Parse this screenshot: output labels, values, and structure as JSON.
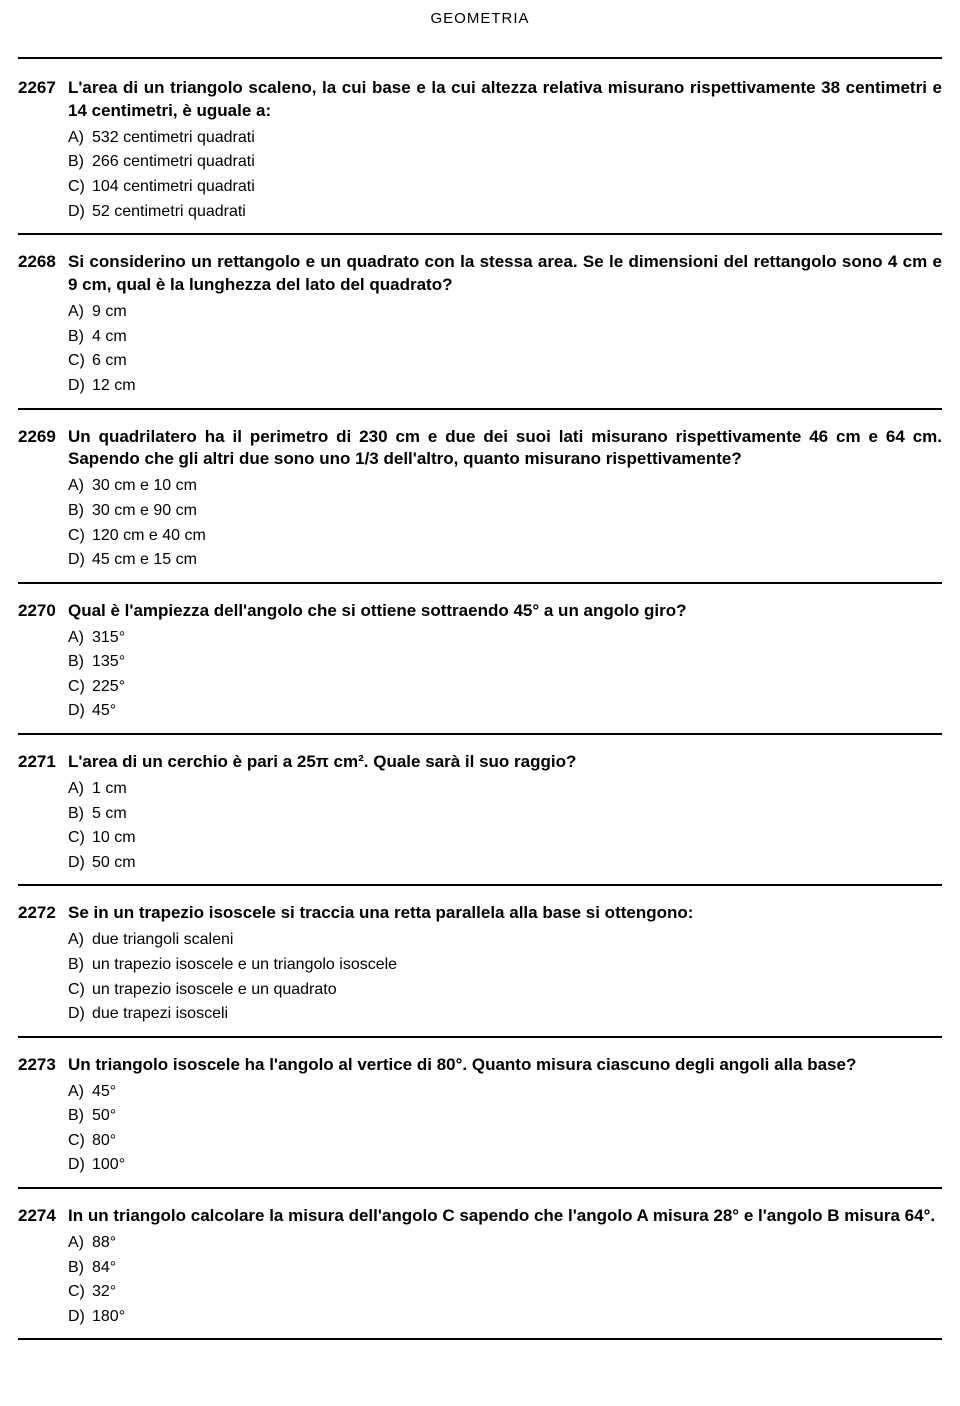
{
  "title": "GEOMETRIA",
  "questions": [
    {
      "number": "2267",
      "text": "L'area di un triangolo scaleno, la cui base e la cui altezza relativa misurano rispettivamente 38 centimetri e 14 centimetri, è uguale a:",
      "options": [
        {
          "letter": "A)",
          "text": "532 centimetri quadrati"
        },
        {
          "letter": "B)",
          "text": "266 centimetri quadrati"
        },
        {
          "letter": "C)",
          "text": "104 centimetri quadrati"
        },
        {
          "letter": "D)",
          "text": "52 centimetri quadrati"
        }
      ]
    },
    {
      "number": "2268",
      "text": "Si considerino un rettangolo e un quadrato con la stessa area. Se le dimensioni del rettangolo sono 4 cm e 9 cm, qual è la lunghezza del lato del quadrato?",
      "options": [
        {
          "letter": "A)",
          "text": "9 cm"
        },
        {
          "letter": "B)",
          "text": "4 cm"
        },
        {
          "letter": "C)",
          "text": "6 cm"
        },
        {
          "letter": "D)",
          "text": "12 cm"
        }
      ]
    },
    {
      "number": "2269",
      "text": "Un quadrilatero ha il perimetro di 230 cm e due dei suoi lati misurano rispettivamente 46 cm e 64 cm. Sapendo che gli altri due sono uno 1/3 dell'altro, quanto misurano rispettivamente?",
      "options": [
        {
          "letter": "A)",
          "text": "30 cm e 10 cm"
        },
        {
          "letter": "B)",
          "text": "30 cm e 90 cm"
        },
        {
          "letter": "C)",
          "text": "120 cm e 40 cm"
        },
        {
          "letter": "D)",
          "text": "45 cm e 15 cm"
        }
      ]
    },
    {
      "number": "2270",
      "text": "Qual è l'ampiezza dell'angolo che si ottiene sottraendo 45° a un angolo giro?",
      "options": [
        {
          "letter": "A)",
          "text": "315°"
        },
        {
          "letter": "B)",
          "text": "135°"
        },
        {
          "letter": "C)",
          "text": "225°"
        },
        {
          "letter": "D)",
          "text": "45°"
        }
      ]
    },
    {
      "number": "2271",
      "text": "L'area di un cerchio è pari a 25π cm². Quale sarà il suo raggio?",
      "options": [
        {
          "letter": "A)",
          "text": "1 cm"
        },
        {
          "letter": "B)",
          "text": "5 cm"
        },
        {
          "letter": "C)",
          "text": "10 cm"
        },
        {
          "letter": "D)",
          "text": "50 cm"
        }
      ]
    },
    {
      "number": "2272",
      "text": "Se in un trapezio isoscele si traccia una retta parallela alla base si ottengono:",
      "options": [
        {
          "letter": "A)",
          "text": "due triangoli scaleni"
        },
        {
          "letter": "B)",
          "text": "un trapezio isoscele e un triangolo isoscele"
        },
        {
          "letter": "C)",
          "text": "un trapezio isoscele e un quadrato"
        },
        {
          "letter": "D)",
          "text": "due trapezi isosceli"
        }
      ]
    },
    {
      "number": "2273",
      "text": "Un triangolo isoscele ha l'angolo al vertice di 80°. Quanto misura ciascuno degli angoli alla base?",
      "options": [
        {
          "letter": "A)",
          "text": "45°"
        },
        {
          "letter": "B)",
          "text": "50°"
        },
        {
          "letter": "C)",
          "text": "80°"
        },
        {
          "letter": "D)",
          "text": "100°"
        }
      ]
    },
    {
      "number": "2274",
      "text": "In un triangolo calcolare la misura dell'angolo C sapendo che l'angolo A misura 28° e l'angolo B misura 64°.",
      "options": [
        {
          "letter": "A)",
          "text": "88°"
        },
        {
          "letter": "B)",
          "text": "84°"
        },
        {
          "letter": "C)",
          "text": "32°"
        },
        {
          "letter": "D)",
          "text": "180°"
        }
      ]
    }
  ]
}
